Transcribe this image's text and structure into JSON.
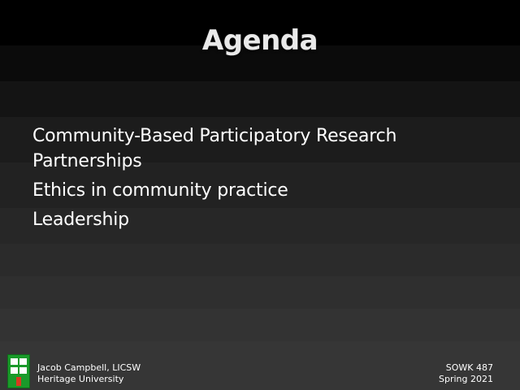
{
  "slide": {
    "title": "Agenda",
    "items": [
      "Community-Based Participatory Research Partnerships",
      "Ethics in community practice",
      "Leadership"
    ]
  },
  "footer": {
    "author": "Jacob Campbell, LICSW",
    "institution": "Heritage University",
    "course": "SOWK 487",
    "term": "Spring 2021",
    "logo_icon": "university-logo-icon"
  },
  "colors": {
    "background_top": "#000000",
    "background_bottom": "#363636",
    "text": "#ffffff",
    "logo_green": "#1a9a2a",
    "logo_red": "#d83a1f"
  }
}
